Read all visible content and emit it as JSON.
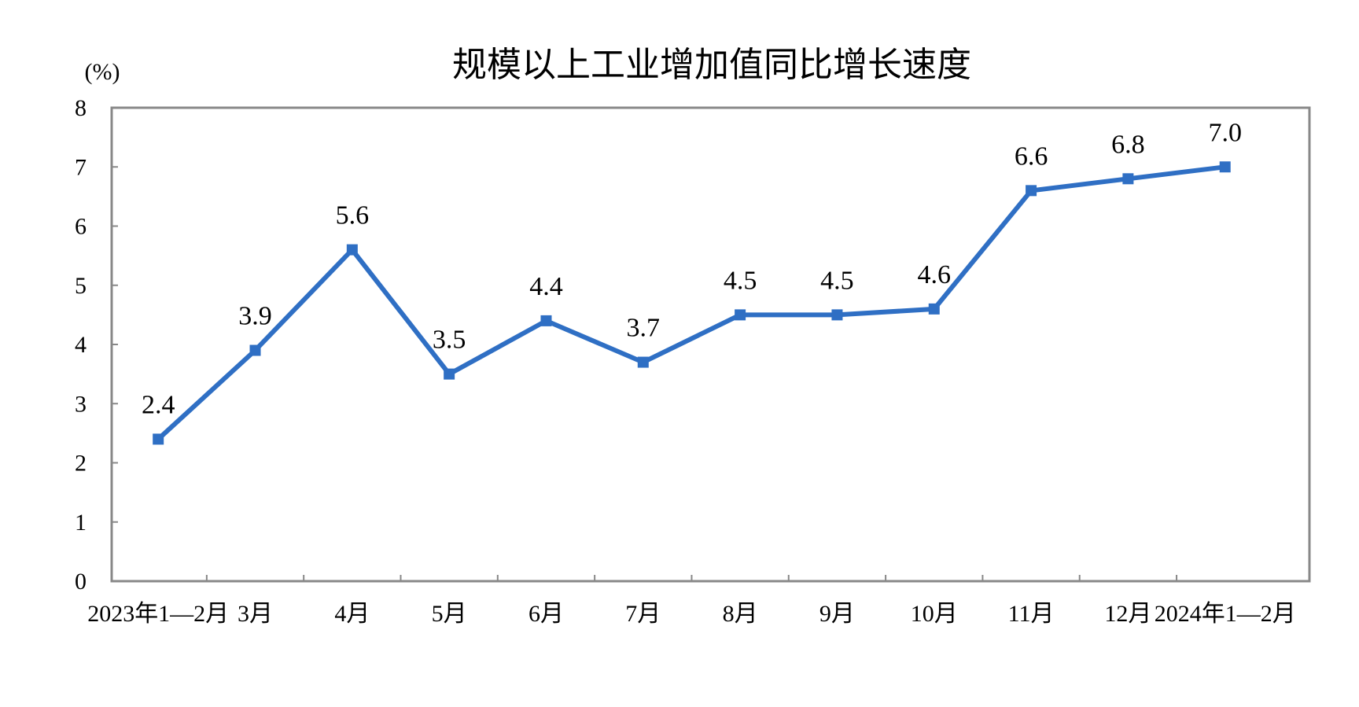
{
  "chart_data": {
    "type": "line",
    "title": "规模以上工业增加值同比增长速度",
    "ylabel": "(%)",
    "xlabel": "",
    "categories": [
      "2023年1—2月",
      "3月",
      "4月",
      "5月",
      "6月",
      "7月",
      "8月",
      "9月",
      "10月",
      "11月",
      "12月",
      "2024年1—2月"
    ],
    "series": [
      {
        "values": [
          2.4,
          3.9,
          5.6,
          3.5,
          4.4,
          3.7,
          4.5,
          4.5,
          4.6,
          6.6,
          6.8,
          7.0
        ],
        "data_labels": [
          "2.4",
          "3.9",
          "5.6",
          "3.5",
          "4.4",
          "3.7",
          "4.5",
          "4.5",
          "4.6",
          "6.6",
          "6.8",
          "7.0"
        ],
        "color": "#2f6fc4",
        "marker": "square"
      }
    ],
    "y_ticks": [
      "0",
      "1",
      "2",
      "3",
      "4",
      "5",
      "6",
      "7",
      "8"
    ],
    "ylim": [
      0,
      8
    ],
    "grid": false,
    "legend": "none"
  }
}
